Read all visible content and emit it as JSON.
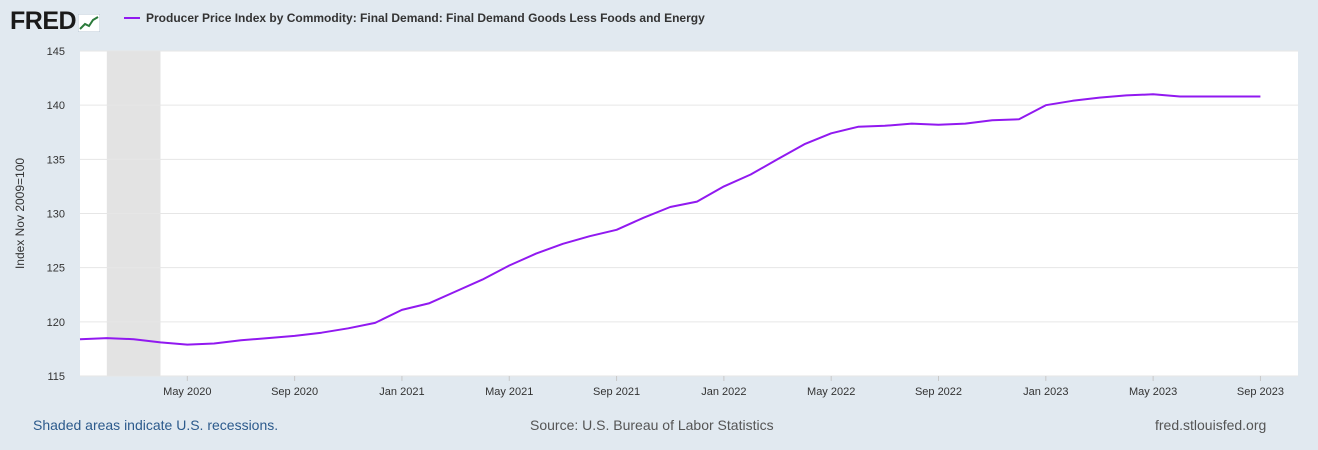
{
  "header": {
    "logo_text": "FRED",
    "legend_label": "Producer Price Index by Commodity: Final Demand: Final Demand Goods Less Foods and Energy",
    "series_color": "#9119f0"
  },
  "footer": {
    "recession_note": "Shaded areas indicate U.S. recessions.",
    "source": "Source: U.S. Bureau of Labor Statistics",
    "site": "fred.stlouisfed.org"
  },
  "chart_data": {
    "type": "line",
    "title": "Producer Price Index by Commodity: Final Demand: Final Demand Goods Less Foods and Energy",
    "ylabel": "Index Nov 2009=100",
    "xlabel": "",
    "ylim": [
      115,
      145
    ],
    "y_ticks": [
      115,
      120,
      125,
      130,
      135,
      140,
      145
    ],
    "x_start": "2020-01",
    "x_end": "2023-10",
    "x_ticks": [
      {
        "label": "May 2020",
        "month_index": 4
      },
      {
        "label": "Sep 2020",
        "month_index": 8
      },
      {
        "label": "Jan 2021",
        "month_index": 12
      },
      {
        "label": "May 2021",
        "month_index": 16
      },
      {
        "label": "Sep 2021",
        "month_index": 20
      },
      {
        "label": "Jan 2022",
        "month_index": 24
      },
      {
        "label": "May 2022",
        "month_index": 28
      },
      {
        "label": "Sep 2022",
        "month_index": 32
      },
      {
        "label": "Jan 2023",
        "month_index": 36
      },
      {
        "label": "May 2023",
        "month_index": 40
      },
      {
        "label": "Sep 2023",
        "month_index": 44
      }
    ],
    "recession": {
      "start_month_index": 1,
      "end_month_index": 3
    },
    "series": [
      {
        "name": "PPI Final Demand Goods Less Foods and Energy",
        "x": [
          "2020-01",
          "2020-02",
          "2020-03",
          "2020-04",
          "2020-05",
          "2020-06",
          "2020-07",
          "2020-08",
          "2020-09",
          "2020-10",
          "2020-11",
          "2020-12",
          "2021-01",
          "2021-02",
          "2021-03",
          "2021-04",
          "2021-05",
          "2021-06",
          "2021-07",
          "2021-08",
          "2021-09",
          "2021-10",
          "2021-11",
          "2021-12",
          "2022-01",
          "2022-02",
          "2022-03",
          "2022-04",
          "2022-05",
          "2022-06",
          "2022-07",
          "2022-08",
          "2022-09",
          "2022-10",
          "2022-11",
          "2022-12",
          "2023-01",
          "2023-02",
          "2023-03",
          "2023-04",
          "2023-05",
          "2023-06",
          "2023-07",
          "2023-08",
          "2023-09"
        ],
        "values": [
          118.4,
          118.5,
          118.4,
          118.1,
          117.9,
          118.0,
          118.3,
          118.5,
          118.7,
          119.0,
          119.4,
          119.9,
          121.1,
          121.7,
          122.8,
          123.9,
          125.2,
          126.3,
          127.2,
          127.9,
          128.5,
          129.6,
          130.6,
          131.1,
          132.5,
          133.6,
          135.0,
          136.4,
          137.4,
          138.0,
          138.1,
          138.3,
          138.2,
          138.3,
          138.6,
          138.7,
          140.0,
          140.4,
          140.7,
          140.9,
          141.0,
          140.8,
          140.8,
          140.8,
          140.8
        ]
      }
    ]
  }
}
